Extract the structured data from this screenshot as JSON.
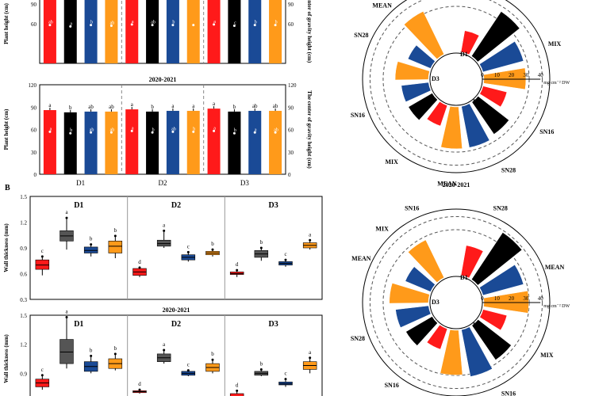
{
  "labels": {
    "panel_b": "B",
    "season_2": "2020-2021",
    "plant_height": "Plant height (cm)",
    "cog_height": "The center of gravity height (cm)",
    "wall_thickness": "Wall thickness (mm)",
    "mg_unit": "mg cm⁻² DW"
  },
  "colors": {
    "red": "#ff1a1a",
    "black": "#000000",
    "blue": "#1a4a96",
    "orange": "#ff9a1a"
  },
  "chart_data": [
    {
      "type": "bar",
      "title": "",
      "ylabel": "Plant height (cm)",
      "y2label": "The center of gravity height (cm)",
      "ylim": [
        0,
        120
      ],
      "y2lim": [
        0,
        120
      ],
      "groups": [],
      "yticks": [
        "60",
        "90",
        "120"
      ],
      "y2ticks": [
        "60",
        "90",
        "120"
      ],
      "values": [
        117,
        114,
        116,
        115,
        118,
        115,
        116,
        116,
        118,
        116,
        117,
        116
      ],
      "inner_values": [
        58,
        56,
        58,
        57,
        59,
        58,
        58,
        58,
        59,
        57,
        58,
        58
      ],
      "letters": [
        "a",
        "c",
        "b",
        "bc",
        "a",
        "c",
        "b",
        "b",
        "a",
        "c",
        "b",
        "b"
      ],
      "inner_letters": [
        "ab",
        "a",
        "b",
        "ab",
        "a",
        "ab",
        "b",
        "",
        "a",
        "c",
        "b",
        "b"
      ],
      "colors": [
        "#ff1a1a",
        "#000000",
        "#1a4a96",
        "#ff9a1a",
        "#ff1a1a",
        "#000000",
        "#1a4a96",
        "#ff9a1a",
        "#ff1a1a",
        "#000000",
        "#1a4a96",
        "#ff9a1a"
      ]
    },
    {
      "type": "bar",
      "title": "2020-2021",
      "ylabel": "Plant height (cm)",
      "y2label": "The center of gravity height (cm)",
      "ylim": [
        0,
        120
      ],
      "y2lim": [
        0,
        120
      ],
      "groups": [
        "D1",
        "D2",
        "D3"
      ],
      "yticks": [
        "0",
        "30",
        "60",
        "90",
        "120"
      ],
      "y2ticks": [
        "0",
        "30",
        "60",
        "90",
        "120"
      ],
      "values": [
        86,
        83,
        84,
        84,
        87,
        84,
        85,
        85,
        88,
        84,
        85,
        85
      ],
      "inner_values": [
        57,
        55,
        56,
        56,
        58,
        56,
        57,
        57,
        58,
        55,
        56,
        56
      ],
      "letters": [
        "a",
        "b",
        "ab",
        "ab",
        "a",
        "b",
        "a",
        "a",
        "a",
        "b",
        "ab",
        "ab"
      ],
      "inner_letters": [
        "a",
        "b",
        "ab",
        "ab",
        "a",
        "b",
        "ab",
        "b",
        "a",
        "b",
        "a",
        "ab"
      ],
      "colors": [
        "#ff1a1a",
        "#000000",
        "#1a4a96",
        "#ff9a1a",
        "#ff1a1a",
        "#000000",
        "#1a4a96",
        "#ff9a1a",
        "#ff1a1a",
        "#000000",
        "#1a4a96",
        "#ff9a1a"
      ]
    },
    {
      "type": "boxplot",
      "title": "",
      "ylabel": "Wall thickness (mm)",
      "ylim": [
        0.3,
        1.5
      ],
      "yticks": [
        "0.3",
        "0.6",
        "0.9",
        "1.2",
        "1.5"
      ],
      "groups": [
        "D1",
        "D2",
        "D3"
      ],
      "boxes": [
        {
          "min": 0.58,
          "q1": 0.65,
          "med": 0.7,
          "q3": 0.76,
          "max": 0.8,
          "letter": "c",
          "color": "#ff1a1a"
        },
        {
          "min": 0.88,
          "q1": 0.98,
          "med": 1.04,
          "q3": 1.1,
          "max": 1.25,
          "letter": "a",
          "color": "#555555"
        },
        {
          "min": 0.8,
          "q1": 0.84,
          "med": 0.87,
          "q3": 0.91,
          "max": 0.94,
          "letter": "b",
          "color": "#1a4a96"
        },
        {
          "min": 0.78,
          "q1": 0.84,
          "med": 0.92,
          "q3": 0.98,
          "max": 1.04,
          "letter": "b",
          "color": "#ff9a1a"
        },
        {
          "min": 0.56,
          "q1": 0.58,
          "med": 0.62,
          "q3": 0.66,
          "max": 0.67,
          "letter": "d",
          "color": "#ff1a1a"
        },
        {
          "min": 0.9,
          "q1": 0.92,
          "med": 0.95,
          "q3": 0.99,
          "max": 1.1,
          "letter": "a",
          "color": "#555555"
        },
        {
          "min": 0.74,
          "q1": 0.76,
          "med": 0.79,
          "q3": 0.82,
          "max": 0.85,
          "letter": "c",
          "color": "#1a4a96"
        },
        {
          "min": 0.8,
          "q1": 0.82,
          "med": 0.84,
          "q3": 0.86,
          "max": 0.88,
          "letter": "b",
          "color": "#ff9a1a"
        },
        {
          "min": 0.56,
          "q1": 0.59,
          "med": 0.6,
          "q3": 0.62,
          "max": 0.64,
          "letter": "d",
          "color": "#ff1a1a"
        },
        {
          "min": 0.75,
          "q1": 0.79,
          "med": 0.83,
          "q3": 0.87,
          "max": 0.9,
          "letter": "b",
          "color": "#555555"
        },
        {
          "min": 0.68,
          "q1": 0.7,
          "med": 0.72,
          "q3": 0.74,
          "max": 0.76,
          "letter": "c",
          "color": "#1a4a96"
        },
        {
          "min": 0.88,
          "q1": 0.9,
          "med": 0.93,
          "q3": 0.96,
          "max": 0.99,
          "letter": "a",
          "color": "#ff9a1a"
        }
      ]
    },
    {
      "type": "boxplot",
      "title": "2020-2021",
      "ylabel": "Wall thickness (mm)",
      "ylim": [
        0.6,
        1.5
      ],
      "yticks": [
        "0.6",
        "0.9",
        "1.2",
        "1.5"
      ],
      "groups": [
        "D1",
        "D2",
        "D3"
      ],
      "boxes": [
        {
          "min": 0.73,
          "q1": 0.76,
          "med": 0.8,
          "q3": 0.84,
          "max": 0.88,
          "letter": "c",
          "color": "#ff1a1a"
        },
        {
          "min": 0.95,
          "q1": 1.0,
          "med": 1.12,
          "q3": 1.25,
          "max": 1.48,
          "letter": "a",
          "color": "#555555"
        },
        {
          "min": 0.9,
          "q1": 0.92,
          "med": 0.97,
          "q3": 1.02,
          "max": 1.08,
          "letter": "b",
          "color": "#1a4a96"
        },
        {
          "min": 0.93,
          "q1": 0.95,
          "med": 1.0,
          "q3": 1.05,
          "max": 1.1,
          "letter": "b",
          "color": "#ff9a1a"
        },
        {
          "min": 0.69,
          "q1": 0.7,
          "med": 0.71,
          "q3": 0.72,
          "max": 0.73,
          "letter": "d",
          "color": "#ff1a1a"
        },
        {
          "min": 1.0,
          "q1": 1.02,
          "med": 1.06,
          "q3": 1.1,
          "max": 1.14,
          "letter": "a",
          "color": "#555555"
        },
        {
          "min": 0.87,
          "q1": 0.88,
          "med": 0.9,
          "q3": 0.92,
          "max": 0.93,
          "letter": "c",
          "color": "#1a4a96"
        },
        {
          "min": 0.9,
          "q1": 0.92,
          "med": 0.96,
          "q3": 1.0,
          "max": 1.04,
          "letter": "b",
          "color": "#ff9a1a"
        },
        {
          "min": 0.61,
          "q1": 0.64,
          "med": 0.66,
          "q3": 0.69,
          "max": 0.72,
          "letter": "d",
          "color": "#ff1a1a"
        },
        {
          "min": 0.87,
          "q1": 0.88,
          "med": 0.9,
          "q3": 0.92,
          "max": 0.94,
          "letter": "b",
          "color": "#555555"
        },
        {
          "min": 0.76,
          "q1": 0.78,
          "med": 0.79,
          "q3": 0.81,
          "max": 0.84,
          "letter": "c",
          "color": "#1a4a96"
        },
        {
          "min": 0.9,
          "q1": 0.94,
          "med": 0.98,
          "q3": 1.02,
          "max": 1.06,
          "letter": "a",
          "color": "#ff9a1a"
        }
      ]
    },
    {
      "type": "radial_bar",
      "title": "",
      "unit": "mg cm⁻² DW",
      "rlim": [
        0,
        40
      ],
      "rticks": [
        "0",
        "10",
        "20",
        "30",
        "40"
      ],
      "outer_labels": [
        "MIX",
        "MEAN",
        "MIX",
        "SN16",
        "SN28",
        "MEAN",
        "MIX",
        "SN16",
        "SN28",
        "MEAN"
      ],
      "group_labels": [
        "D1",
        "D2",
        "D3"
      ],
      "values": [
        16,
        38,
        30,
        30,
        18,
        28,
        30,
        30,
        16,
        20,
        20,
        24,
        18,
        34
      ],
      "colors": [
        "#ff1a1a",
        "#000000",
        "#1a4a96",
        "#ff9a1a",
        "#ff1a1a",
        "#000000",
        "#1a4a96",
        "#ff9a1a",
        "#ff1a1a",
        "#000000",
        "#1a4a96",
        "#ff9a1a",
        "#1a4a96",
        "#ff9a1a"
      ]
    },
    {
      "type": "radial_bar",
      "title": "2020-2021",
      "unit": "mg cm⁻² DW",
      "rlim": [
        0,
        40
      ],
      "rticks": [
        "0",
        "10",
        "20",
        "30",
        "40"
      ],
      "outer_labels": [
        "SN16",
        "SN28",
        "MEAN",
        "MIX",
        "SN16",
        "SN28",
        "SN16",
        "SN28",
        "MEAN",
        "MIX"
      ],
      "group_labels": [
        "D1",
        "D2",
        "D3"
      ],
      "values": [
        22,
        40,
        30,
        32,
        18,
        30,
        34,
        32,
        16,
        22,
        24,
        28,
        20,
        30
      ],
      "colors": [
        "#ff1a1a",
        "#000000",
        "#1a4a96",
        "#ff9a1a",
        "#ff1a1a",
        "#000000",
        "#1a4a96",
        "#ff9a1a",
        "#ff1a1a",
        "#000000",
        "#1a4a96",
        "#ff9a1a",
        "#1a4a96",
        "#ff9a1a"
      ]
    }
  ]
}
